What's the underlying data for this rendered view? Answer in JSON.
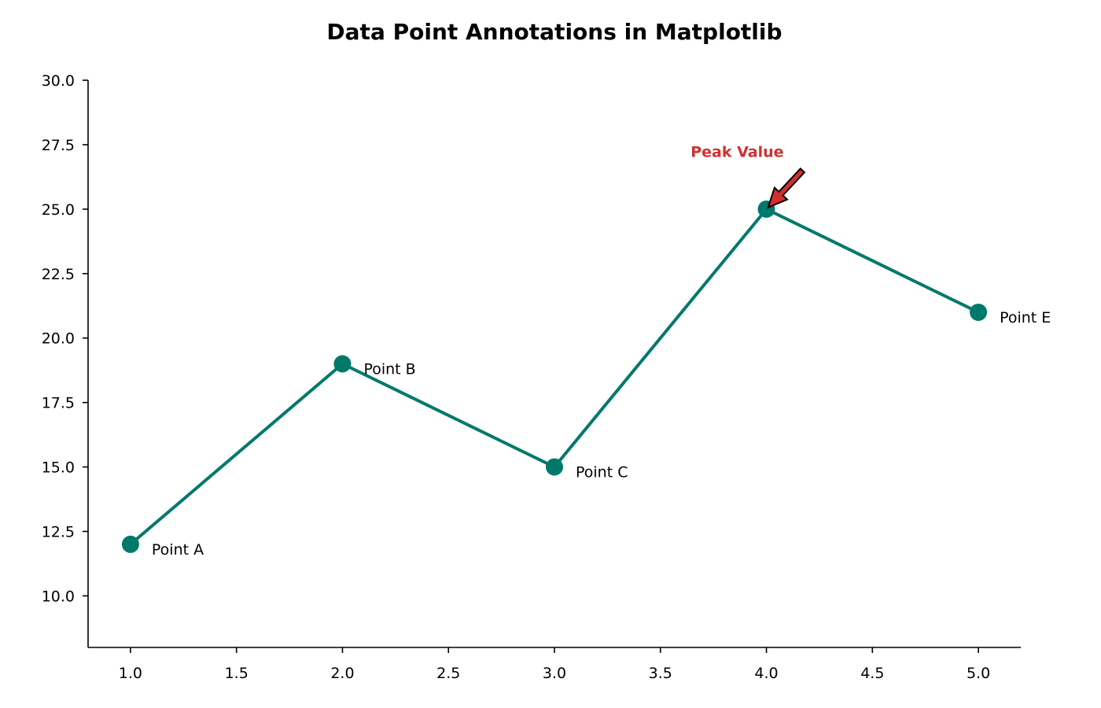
{
  "chart_data": {
    "type": "line",
    "title": "Data Point Annotations in Matplotlib",
    "xlabel": "",
    "ylabel": "",
    "x": [
      1,
      2,
      3,
      4,
      5
    ],
    "series": [
      {
        "values": [
          12,
          19,
          15,
          25,
          21
        ],
        "point_labels": [
          "Point A",
          "Point B",
          "Point C",
          "",
          "Point E"
        ]
      }
    ],
    "xlim": [
      0.8,
      5.2
    ],
    "ylim": [
      8,
      30
    ],
    "xticks": [
      1.0,
      1.5,
      2.0,
      2.5,
      3.0,
      3.5,
      4.0,
      4.5,
      5.0
    ],
    "xtick_labels": [
      "1.0",
      "1.5",
      "2.0",
      "2.5",
      "3.0",
      "3.5",
      "4.0",
      "4.5",
      "5.0"
    ],
    "yticks": [
      10.0,
      12.5,
      15.0,
      17.5,
      20.0,
      22.5,
      25.0,
      27.5,
      30.0
    ],
    "ytick_labels": [
      "10.0",
      "12.5",
      "15.0",
      "17.5",
      "20.0",
      "22.5",
      "25.0",
      "27.5",
      "30.0"
    ],
    "grid": false,
    "annotations": [
      {
        "text": "Peak Value",
        "point": [
          4,
          25
        ],
        "text_at": [
          4.17,
          26.5
        ]
      }
    ],
    "colors": {
      "line": "#00796b",
      "annotation": "#d32f2f",
      "axis": "#000000"
    }
  }
}
